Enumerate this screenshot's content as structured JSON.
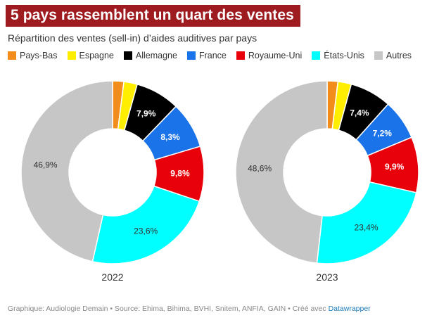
{
  "title": "5 pays rassemblent un quart des ventes",
  "subtitle": "Répartition des ventes (sell-in) d’aides auditives par pays",
  "legend": [
    {
      "label": "Pays-Bas",
      "color": "#f28c1b"
    },
    {
      "label": "Espagne",
      "color": "#ffee00"
    },
    {
      "label": "Allemagne",
      "color": "#000000"
    },
    {
      "label": "France",
      "color": "#1a73e8"
    },
    {
      "label": "Royaume-Uni",
      "color": "#e8000b"
    },
    {
      "label": "États-Unis",
      "color": "#00ffff"
    },
    {
      "label": "Autres",
      "color": "#c6c6c6"
    }
  ],
  "chart_data": [
    {
      "type": "pie",
      "title": "2022",
      "categories": [
        "Pays-Bas",
        "Espagne",
        "Allemagne",
        "France",
        "Royaume-Uni",
        "États-Unis",
        "Autres"
      ],
      "values": [
        2.0,
        2.4,
        7.9,
        8.3,
        9.8,
        23.6,
        46.9
      ],
      "labels": [
        "",
        "",
        "7,9%",
        "8,3%",
        "9,8%",
        "23,6%",
        "46,9%"
      ]
    },
    {
      "type": "pie",
      "title": "2023",
      "categories": [
        "Pays-Bas",
        "Espagne",
        "Allemagne",
        "France",
        "Royaume-Uni",
        "États-Unis",
        "Autres"
      ],
      "values": [
        1.9,
        2.4,
        7.4,
        7.2,
        9.9,
        23.4,
        48.6
      ],
      "labels": [
        "",
        "",
        "7,4%",
        "7,2%",
        "9,9%",
        "23,4%",
        "48,6%"
      ]
    }
  ],
  "footer": {
    "prefix": "Graphique: Audiologie Demain • Source: Ehima, Bihima, BVHI, Snitem, ANFIA, GAIN • Créé avec ",
    "link": "Datawrapper"
  }
}
